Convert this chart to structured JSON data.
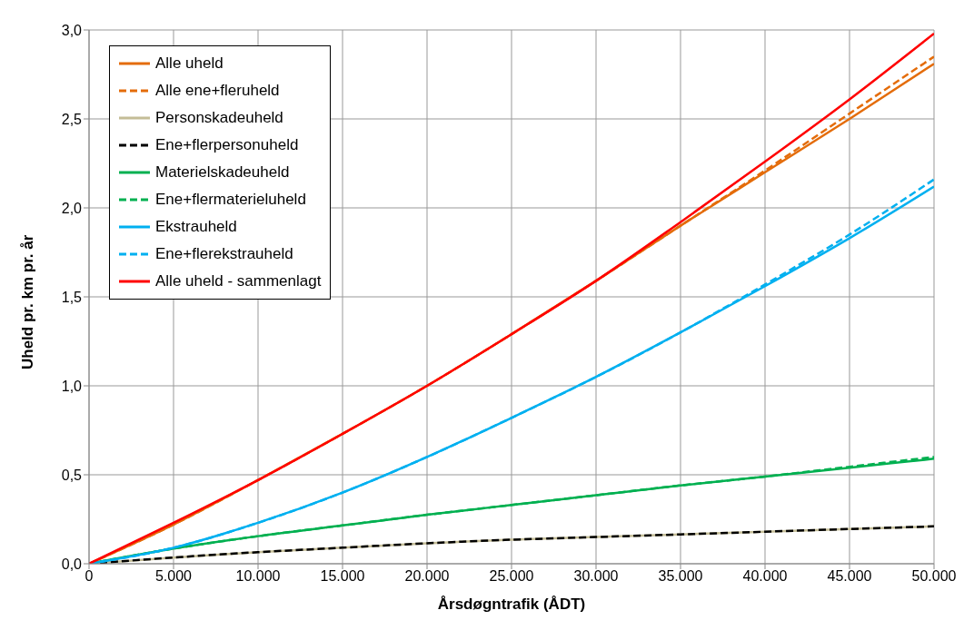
{
  "chart_data": {
    "type": "line",
    "xlabel": "Årsdøgntrafik  (ÅDT)",
    "ylabel": "Uheld pr. km pr. år",
    "x": [
      0,
      5000,
      10000,
      15000,
      20000,
      25000,
      30000,
      35000,
      40000,
      45000,
      50000
    ],
    "xlim": [
      0,
      50000
    ],
    "xticks": [
      {
        "value": 0,
        "label": "0"
      },
      {
        "value": 5000,
        "label": "5.000"
      },
      {
        "value": 10000,
        "label": "10.000"
      },
      {
        "value": 15000,
        "label": "15.000"
      },
      {
        "value": 20000,
        "label": "20.000"
      },
      {
        "value": 25000,
        "label": "25.000"
      },
      {
        "value": 30000,
        "label": "30.000"
      },
      {
        "value": 35000,
        "label": "35.000"
      },
      {
        "value": 40000,
        "label": "40.000"
      },
      {
        "value": 45000,
        "label": "45.000"
      },
      {
        "value": 50000,
        "label": "50.000"
      }
    ],
    "ylim": [
      0,
      3
    ],
    "yticks": [
      {
        "value": 0,
        "label": "0,0"
      },
      {
        "value": 0.5,
        "label": "0,5"
      },
      {
        "value": 1,
        "label": "1,0"
      },
      {
        "value": 1.5,
        "label": "1,5"
      },
      {
        "value": 2,
        "label": "2,0"
      },
      {
        "value": 2.5,
        "label": "2,5"
      },
      {
        "value": 3,
        "label": "3,0"
      }
    ],
    "grid": true,
    "legend": "top left",
    "marker": "none",
    "series": [
      {
        "name": "Alle uheld",
        "color": "#e46c0a",
        "line_style": "solid",
        "values": [
          0,
          0.22,
          0.47,
          0.73,
          1.0,
          1.29,
          1.59,
          1.9,
          2.2,
          2.5,
          2.81
        ]
      },
      {
        "name": "Alle ene+fleruheld",
        "color": "#e46c0a",
        "line_style": "dashed",
        "values": [
          0,
          0.22,
          0.47,
          0.73,
          1.0,
          1.29,
          1.59,
          1.9,
          2.21,
          2.53,
          2.85
        ]
      },
      {
        "name": "Personskadeuheld",
        "color": "#c4bd97",
        "line_style": "solid",
        "values": [
          0,
          0.035,
          0.065,
          0.09,
          0.115,
          0.135,
          0.15,
          0.165,
          0.18,
          0.195,
          0.21
        ]
      },
      {
        "name": "Ene+flerpersonuheld",
        "color": "#000000",
        "line_style": "dashed",
        "values": [
          0,
          0.035,
          0.065,
          0.09,
          0.115,
          0.135,
          0.15,
          0.165,
          0.18,
          0.195,
          0.21
        ]
      },
      {
        "name": "Materielskadeuheld",
        "color": "#00b050",
        "line_style": "solid",
        "values": [
          0,
          0.085,
          0.155,
          0.215,
          0.275,
          0.33,
          0.385,
          0.44,
          0.49,
          0.54,
          0.59
        ]
      },
      {
        "name": "Ene+flermaterieluheld",
        "color": "#00b050",
        "line_style": "dashed",
        "values": [
          0,
          0.085,
          0.155,
          0.215,
          0.275,
          0.33,
          0.385,
          0.44,
          0.49,
          0.545,
          0.6
        ]
      },
      {
        "name": "Ekstrauheld",
        "color": "#00b0f0",
        "line_style": "solid",
        "values": [
          0,
          0.09,
          0.23,
          0.4,
          0.6,
          0.82,
          1.05,
          1.3,
          1.56,
          1.83,
          2.12
        ]
      },
      {
        "name": "Ene+flerekstrauheld",
        "color": "#00b0f0",
        "line_style": "dashed",
        "values": [
          0,
          0.09,
          0.23,
          0.4,
          0.6,
          0.82,
          1.05,
          1.3,
          1.57,
          1.85,
          2.16
        ]
      },
      {
        "name": "Alle uheld - sammenlagt",
        "color": "#ff0000",
        "line_style": "solid",
        "values": [
          0,
          0.23,
          0.47,
          0.73,
          1.0,
          1.29,
          1.59,
          1.92,
          2.26,
          2.61,
          2.98
        ]
      }
    ]
  }
}
